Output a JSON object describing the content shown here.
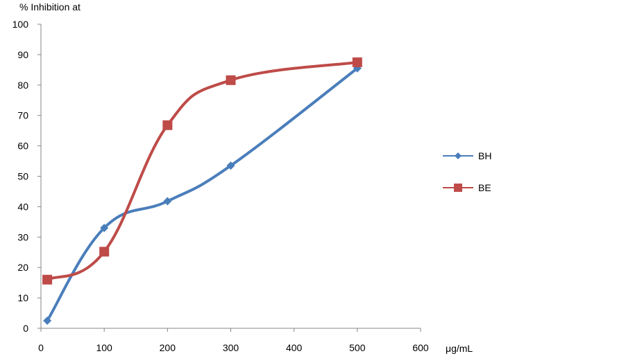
{
  "chart_data": {
    "type": "line",
    "title": "",
    "ylabel": "% Inhibition at",
    "xlabel": "μg/mL",
    "xlim": [
      0,
      600
    ],
    "ylim": [
      0,
      100
    ],
    "x_ticks": [
      0,
      100,
      200,
      300,
      400,
      500,
      600
    ],
    "y_ticks": [
      0,
      10,
      20,
      30,
      40,
      50,
      60,
      70,
      80,
      90,
      100
    ],
    "grid": false,
    "smooth": true,
    "legend_position": "right",
    "x": [
      10,
      100,
      200,
      300,
      500
    ],
    "series": [
      {
        "name": "BH",
        "values": [
          2.5,
          33,
          41.8,
          53.5,
          85.5
        ],
        "color": "#4a7ebb",
        "marker": "diamond"
      },
      {
        "name": "BE",
        "values": [
          16,
          25.2,
          66.8,
          81.6,
          87.5
        ],
        "color": "#be4b48",
        "marker": "square"
      }
    ]
  }
}
